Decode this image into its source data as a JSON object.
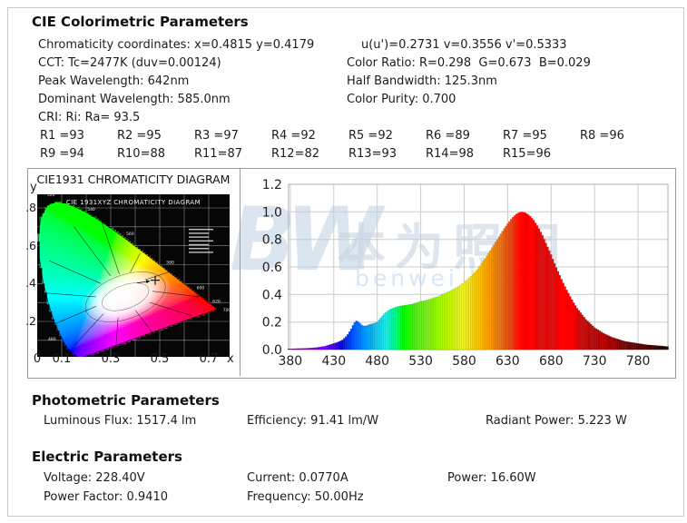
{
  "colorimetric": {
    "heading": "CIE Colorimetric Parameters",
    "rows": [
      {
        "left": "Chromaticity coordinates: x=0.4815 y=0.4179",
        "right": "u(u')=0.2731 v=0.3556 v'=0.5333"
      },
      {
        "left": "CCT: Tc=2477K (duv=0.00124)",
        "right": "Color Ratio: R=0.298  G=0.673  B=0.029"
      },
      {
        "left": "Peak Wavelength: 642nm",
        "right": "Half Bandwidth: 125.3nm"
      },
      {
        "left": "Dominant Wavelength: 585.0nm",
        "right": "Color Purity: 0.700"
      },
      {
        "left": "CRI: Ri: Ra= 93.5",
        "right": ""
      }
    ],
    "cri_row1": [
      "R1 =93",
      "R2 =95",
      "R3 =97",
      "R4 =92",
      "R5 =92",
      "R6 =89",
      "R7 =95",
      "R8 =96"
    ],
    "cri_row2": [
      "R9 =94",
      "R10=88",
      "R11=87",
      "R12=82",
      "R13=93",
      "R14=98",
      "R15=96"
    ]
  },
  "cie_diagram": {
    "title": "CIE1931 CHROMATICITY DIAGRAM",
    "inner_title": "CIE 1931XYZ CHROMATICITY DIAGRAM",
    "y_axis_label": "y",
    "x_axis_label": "x",
    "y_ticks": [
      ".8",
      ".6",
      ".4",
      ".2"
    ],
    "x_ticks": [
      "0",
      "0.1",
      "0.3",
      "0.5",
      "0.7"
    ]
  },
  "chart_data": [
    {
      "type": "scatter",
      "title": "CIE1931 CHROMATICITY DIAGRAM",
      "points": [
        [
          0.4815,
          0.4179
        ]
      ],
      "xlim": [
        0,
        0.8
      ],
      "ylim": [
        0,
        0.9
      ],
      "x_ticks": [
        0,
        0.1,
        0.3,
        0.5,
        0.7
      ],
      "y_ticks": [
        0.2,
        0.4,
        0.6,
        0.8
      ],
      "legend_position": "inner-right"
    },
    {
      "type": "area",
      "title": "",
      "xlabel": "",
      "ylabel": "",
      "xlim": [
        378,
        814
      ],
      "ylim": [
        0,
        1.2
      ],
      "grid": true,
      "x_ticks": [
        380,
        430,
        480,
        530,
        580,
        630,
        680,
        730,
        780
      ],
      "y_ticks": [
        0.0,
        0.2,
        0.4,
        0.6,
        0.8,
        1.0,
        1.2
      ],
      "series": [
        {
          "name": "relative_spectral_power",
          "points": [
            [
              378,
              0.005
            ],
            [
              390,
              0.008
            ],
            [
              400,
              0.01
            ],
            [
              410,
              0.015
            ],
            [
              420,
              0.025
            ],
            [
              425,
              0.035
            ],
            [
              430,
              0.045
            ],
            [
              435,
              0.055
            ],
            [
              440,
              0.07
            ],
            [
              445,
              0.1
            ],
            [
              450,
              0.15
            ],
            [
              453,
              0.19
            ],
            [
              456,
              0.21
            ],
            [
              459,
              0.2
            ],
            [
              462,
              0.18
            ],
            [
              465,
              0.17
            ],
            [
              468,
              0.175
            ],
            [
              472,
              0.185
            ],
            [
              476,
              0.19
            ],
            [
              480,
              0.2
            ],
            [
              484,
              0.23
            ],
            [
              488,
              0.26
            ],
            [
              492,
              0.28
            ],
            [
              496,
              0.295
            ],
            [
              500,
              0.305
            ],
            [
              505,
              0.315
            ],
            [
              510,
              0.32
            ],
            [
              515,
              0.325
            ],
            [
              520,
              0.33
            ],
            [
              525,
              0.34
            ],
            [
              530,
              0.35
            ],
            [
              535,
              0.355
            ],
            [
              540,
              0.365
            ],
            [
              545,
              0.375
            ],
            [
              550,
              0.385
            ],
            [
              555,
              0.4
            ],
            [
              560,
              0.415
            ],
            [
              565,
              0.43
            ],
            [
              570,
              0.445
            ],
            [
              575,
              0.465
            ],
            [
              580,
              0.49
            ],
            [
              585,
              0.515
            ],
            [
              590,
              0.545
            ],
            [
              595,
              0.58
            ],
            [
              600,
              0.625
            ],
            [
              605,
              0.67
            ],
            [
              610,
              0.72
            ],
            [
              615,
              0.77
            ],
            [
              620,
              0.82
            ],
            [
              625,
              0.87
            ],
            [
              630,
              0.915
            ],
            [
              635,
              0.955
            ],
            [
              640,
              0.985
            ],
            [
              645,
              1
            ],
            [
              650,
              0.995
            ],
            [
              655,
              0.975
            ],
            [
              660,
              0.94
            ],
            [
              665,
              0.89
            ],
            [
              670,
              0.83
            ],
            [
              675,
              0.76
            ],
            [
              680,
              0.69
            ],
            [
              685,
              0.61
            ],
            [
              690,
              0.54
            ],
            [
              695,
              0.47
            ],
            [
              700,
              0.41
            ],
            [
              705,
              0.35
            ],
            [
              710,
              0.3
            ],
            [
              715,
              0.26
            ],
            [
              720,
              0.22
            ],
            [
              725,
              0.19
            ],
            [
              730,
              0.16
            ],
            [
              735,
              0.14
            ],
            [
              740,
              0.12
            ],
            [
              745,
              0.105
            ],
            [
              750,
              0.09
            ],
            [
              755,
              0.08
            ],
            [
              760,
              0.07
            ],
            [
              765,
              0.06
            ],
            [
              770,
              0.055
            ],
            [
              775,
              0.05
            ],
            [
              780,
              0.045
            ],
            [
              790,
              0.035
            ],
            [
              800,
              0.03
            ],
            [
              810,
              0.025
            ],
            [
              814,
              0.022
            ]
          ]
        }
      ]
    }
  ],
  "photometric": {
    "heading": "Photometric Parameters",
    "items": [
      "Luminous Flux: 1517.4 lm",
      "Efficiency: 91.41 lm/W",
      "Radiant Power: 5.223 W"
    ]
  },
  "electric": {
    "heading": "Electric Parameters",
    "row1": [
      "Voltage: 228.40V",
      "Current: 0.0770A",
      "Power: 16.60W"
    ],
    "row2": [
      "Power Factor: 0.9410",
      "Frequency: 50.00Hz"
    ]
  },
  "watermark": {
    "logo": "BW",
    "text_cn": "本为照明",
    "text_en": "benwei Light"
  },
  "colors": {
    "background": "#ffffff",
    "border": "#c9c9c9",
    "chart_border": "#9a9a9a",
    "grid": "#cccccc",
    "text": "#1c1c1c"
  }
}
